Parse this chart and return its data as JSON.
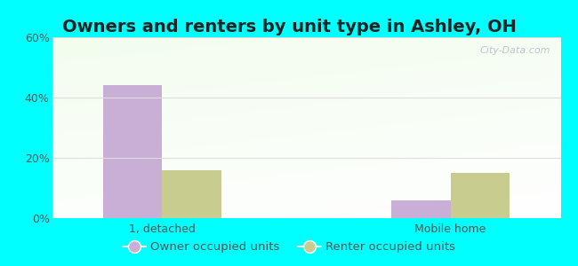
{
  "title": "Owners and renters by unit type in Ashley, OH",
  "categories": [
    "1, detached",
    "Mobile home"
  ],
  "owner_values": [
    44,
    6
  ],
  "renter_values": [
    16,
    15
  ],
  "owner_color": "#c9aed6",
  "renter_color": "#c8cc8e",
  "ylim": [
    0,
    60
  ],
  "yticks": [
    0,
    20,
    40,
    60
  ],
  "ytick_labels": [
    "0%",
    "20%",
    "40%",
    "60%"
  ],
  "bar_width": 0.35,
  "outer_background": "#00ffff",
  "legend_labels": [
    "Owner occupied units",
    "Renter occupied units"
  ],
  "watermark": "City-Data.com",
  "title_fontsize": 14,
  "tick_fontsize": 9,
  "legend_fontsize": 9.5,
  "grid_color": "#dddddd",
  "axis_label_color": "#555555",
  "title_color": "#222222"
}
